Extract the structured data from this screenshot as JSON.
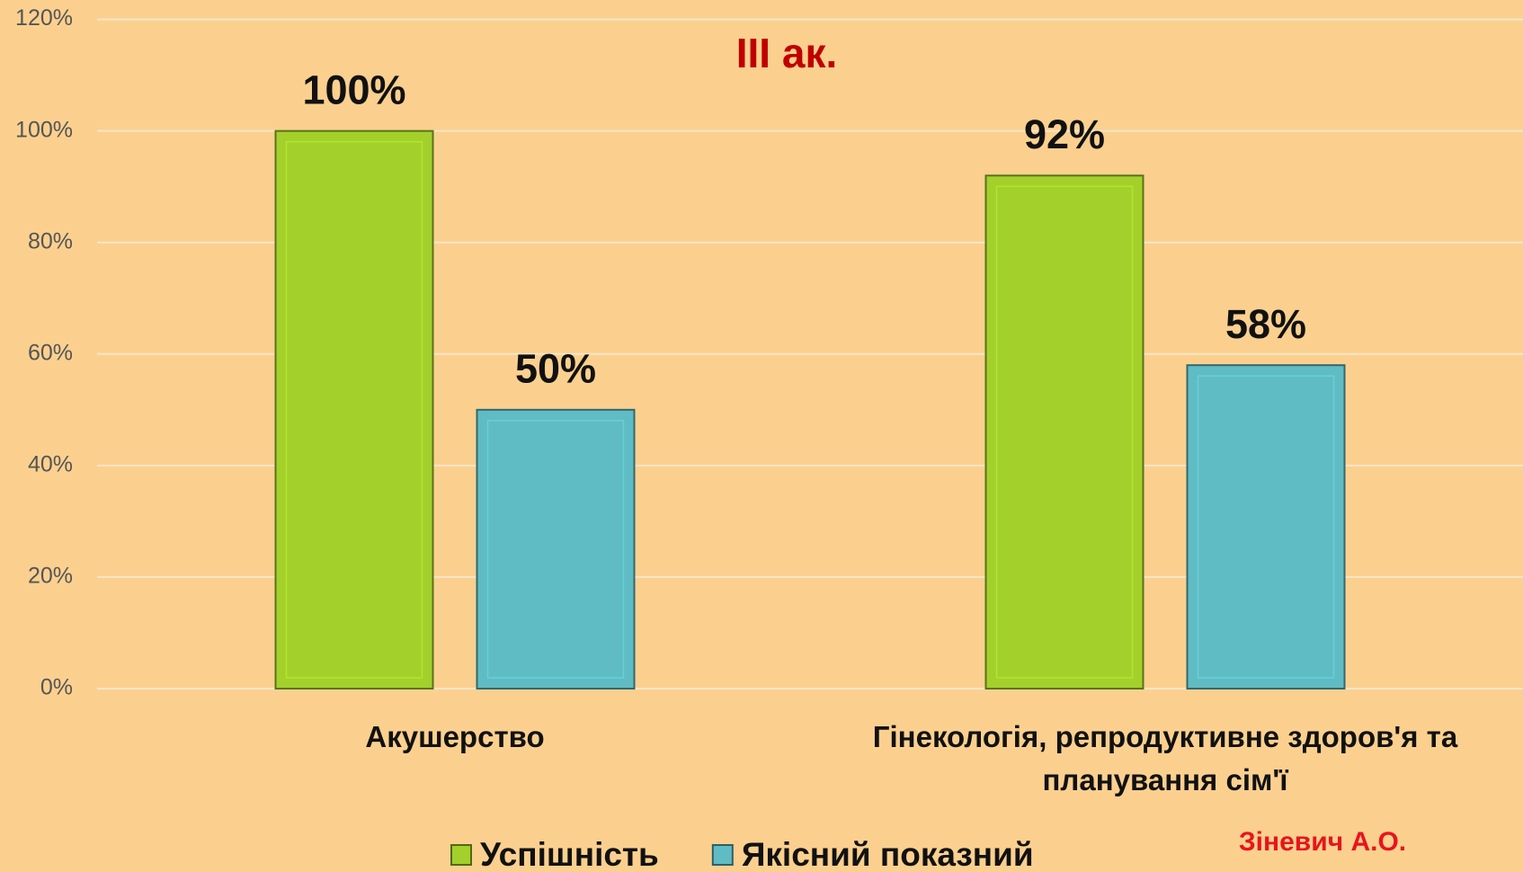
{
  "chart_data": {
    "type": "bar",
    "title": "III ак.",
    "categories": [
      "Акушерство",
      "Гінекологія, репродуктивне здоров'я та планування сім'ї"
    ],
    "series": [
      {
        "name": "Успішність",
        "color": "#a3d02b",
        "values": [
          100,
          92
        ],
        "value_labels": [
          "100%",
          "92%"
        ]
      },
      {
        "name": "Якісний показний",
        "color": "#5fbcc4",
        "values": [
          50,
          58
        ],
        "value_labels": [
          "50%",
          "58%"
        ]
      }
    ],
    "ylim": [
      0,
      120
    ],
    "yticks": [
      {
        "value": 0,
        "label": "0%"
      },
      {
        "value": 20,
        "label": "20%"
      },
      {
        "value": 40,
        "label": "40%"
      },
      {
        "value": 60,
        "label": "60%"
      },
      {
        "value": 80,
        "label": "80%"
      },
      {
        "value": 100,
        "label": "100%"
      },
      {
        "value": 120,
        "label": "120%"
      }
    ],
    "grid": true,
    "legend": "bottom",
    "annotation": "Зіневич А.О."
  }
}
